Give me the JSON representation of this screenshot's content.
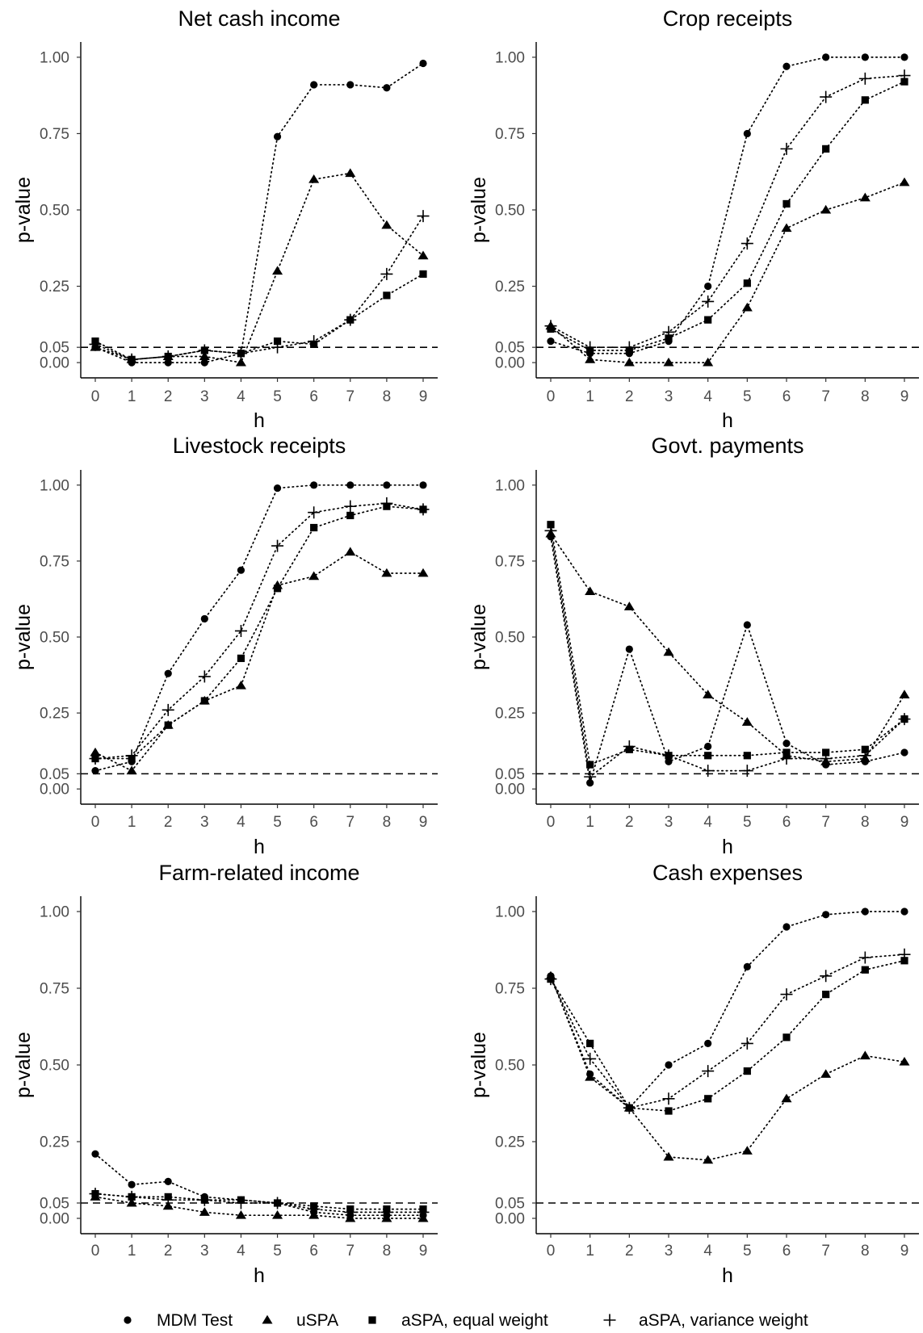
{
  "legend": {
    "items": [
      {
        "label": "MDM Test",
        "marker": "circle"
      },
      {
        "label": "uSPA",
        "marker": "triangle"
      },
      {
        "label": "aSPA, equal weight",
        "marker": "square"
      },
      {
        "label": "aSPA, variance weight",
        "marker": "plus"
      }
    ]
  },
  "chart_data": [
    {
      "type": "line",
      "title": "Net cash income",
      "xlabel": "h",
      "ylabel": "p-value",
      "x": [
        0,
        1,
        2,
        3,
        4,
        5,
        6,
        7,
        8,
        9
      ],
      "xticks": [
        "0",
        "1",
        "2",
        "3",
        "4",
        "5",
        "6",
        "7",
        "8",
        "9"
      ],
      "yticks": [
        0.0,
        0.05,
        0.25,
        0.5,
        0.75,
        1.0
      ],
      "ytick_labels": [
        "0.00",
        "0.05",
        "0.25",
        "0.50",
        "0.75",
        "1.00"
      ],
      "ylim": [
        -0.05,
        1.05
      ],
      "reference_line": 0.05,
      "series": [
        {
          "name": "MDM Test",
          "marker": "circle",
          "values": [
            0.05,
            0.0,
            0.0,
            0.0,
            0.03,
            0.74,
            0.91,
            0.91,
            0.9,
            0.98
          ]
        },
        {
          "name": "uSPA",
          "marker": "triangle",
          "values": [
            0.05,
            0.01,
            0.02,
            0.02,
            0.0,
            0.3,
            0.6,
            0.62,
            0.45,
            0.35
          ]
        },
        {
          "name": "aSPA, equal weight",
          "marker": "square",
          "values": [
            0.07,
            0.01,
            0.02,
            0.04,
            0.03,
            0.07,
            0.06,
            0.14,
            0.22,
            0.29
          ]
        },
        {
          "name": "aSPA, variance weight",
          "marker": "plus",
          "values": [
            0.06,
            0.01,
            0.02,
            0.04,
            0.03,
            0.05,
            0.07,
            0.14,
            0.29,
            0.48
          ]
        }
      ]
    },
    {
      "type": "line",
      "title": "Crop receipts",
      "xlabel": "h",
      "ylabel": "p-value",
      "x": [
        0,
        1,
        2,
        3,
        4,
        5,
        6,
        7,
        8,
        9
      ],
      "xticks": [
        "0",
        "1",
        "2",
        "3",
        "4",
        "5",
        "6",
        "7",
        "8",
        "9"
      ],
      "yticks": [
        0.0,
        0.05,
        0.25,
        0.5,
        0.75,
        1.0
      ],
      "ytick_labels": [
        "0.00",
        "0.05",
        "0.25",
        "0.50",
        "0.75",
        "1.00"
      ],
      "ylim": [
        -0.05,
        1.05
      ],
      "reference_line": 0.05,
      "series": [
        {
          "name": "MDM Test",
          "marker": "circle",
          "values": [
            0.07,
            0.03,
            0.03,
            0.07,
            0.25,
            0.75,
            0.97,
            1.0,
            1.0,
            1.0
          ]
        },
        {
          "name": "uSPA",
          "marker": "triangle",
          "values": [
            0.12,
            0.01,
            0.0,
            0.0,
            0.0,
            0.18,
            0.44,
            0.5,
            0.54,
            0.59
          ]
        },
        {
          "name": "aSPA, equal weight",
          "marker": "square",
          "values": [
            0.11,
            0.04,
            0.04,
            0.08,
            0.14,
            0.26,
            0.52,
            0.7,
            0.86,
            0.92
          ]
        },
        {
          "name": "aSPA, variance weight",
          "marker": "plus",
          "values": [
            0.12,
            0.05,
            0.05,
            0.1,
            0.2,
            0.39,
            0.7,
            0.87,
            0.93,
            0.94
          ]
        }
      ]
    },
    {
      "type": "line",
      "title": "Livestock receipts",
      "xlabel": "h",
      "ylabel": "p-value",
      "x": [
        0,
        1,
        2,
        3,
        4,
        5,
        6,
        7,
        8,
        9
      ],
      "xticks": [
        "0",
        "1",
        "2",
        "3",
        "4",
        "5",
        "6",
        "7",
        "8",
        "9"
      ],
      "yticks": [
        0.0,
        0.05,
        0.25,
        0.5,
        0.75,
        1.0
      ],
      "ytick_labels": [
        "0.00",
        "0.05",
        "0.25",
        "0.50",
        "0.75",
        "1.00"
      ],
      "ylim": [
        -0.05,
        1.05
      ],
      "reference_line": 0.05,
      "series": [
        {
          "name": "MDM Test",
          "marker": "circle",
          "values": [
            0.06,
            0.09,
            0.38,
            0.56,
            0.72,
            0.99,
            1.0,
            1.0,
            1.0,
            1.0
          ]
        },
        {
          "name": "uSPA",
          "marker": "triangle",
          "values": [
            0.12,
            0.06,
            0.21,
            0.29,
            0.34,
            0.67,
            0.7,
            0.78,
            0.71,
            0.71
          ]
        },
        {
          "name": "aSPA, equal weight",
          "marker": "square",
          "values": [
            0.1,
            0.1,
            0.21,
            0.29,
            0.43,
            0.66,
            0.86,
            0.9,
            0.93,
            0.92
          ]
        },
        {
          "name": "aSPA, variance weight",
          "marker": "plus",
          "values": [
            0.1,
            0.11,
            0.26,
            0.37,
            0.52,
            0.8,
            0.91,
            0.93,
            0.94,
            0.92
          ]
        }
      ]
    },
    {
      "type": "line",
      "title": "Govt. payments",
      "xlabel": "h",
      "ylabel": "p-value",
      "x": [
        0,
        1,
        2,
        3,
        4,
        5,
        6,
        7,
        8,
        9
      ],
      "xticks": [
        "0",
        "1",
        "2",
        "3",
        "4",
        "5",
        "6",
        "7",
        "8",
        "9"
      ],
      "yticks": [
        0.0,
        0.05,
        0.25,
        0.5,
        0.75,
        1.0
      ],
      "ytick_labels": [
        "0.00",
        "0.05",
        "0.25",
        "0.50",
        "0.75",
        "1.00"
      ],
      "ylim": [
        -0.05,
        1.05
      ],
      "reference_line": 0.05,
      "series": [
        {
          "name": "MDM Test",
          "marker": "circle",
          "values": [
            0.83,
            0.02,
            0.46,
            0.09,
            0.14,
            0.54,
            0.15,
            0.08,
            0.09,
            0.12
          ]
        },
        {
          "name": "uSPA",
          "marker": "triangle",
          "values": [
            0.84,
            0.65,
            0.6,
            0.45,
            0.31,
            0.22,
            0.11,
            0.09,
            0.1,
            0.31
          ]
        },
        {
          "name": "aSPA, equal weight",
          "marker": "square",
          "values": [
            0.87,
            0.08,
            0.13,
            0.11,
            0.11,
            0.11,
            0.12,
            0.12,
            0.13,
            0.23
          ]
        },
        {
          "name": "aSPA, variance weight",
          "marker": "plus",
          "values": [
            0.85,
            0.04,
            0.14,
            0.11,
            0.06,
            0.06,
            0.1,
            0.1,
            0.11,
            0.23
          ]
        }
      ]
    },
    {
      "type": "line",
      "title": "Farm-related income",
      "xlabel": "h",
      "ylabel": "p-value",
      "x": [
        0,
        1,
        2,
        3,
        4,
        5,
        6,
        7,
        8,
        9
      ],
      "xticks": [
        "0",
        "1",
        "2",
        "3",
        "4",
        "5",
        "6",
        "7",
        "8",
        "9"
      ],
      "yticks": [
        0.0,
        0.05,
        0.25,
        0.5,
        0.75,
        1.0
      ],
      "ytick_labels": [
        "0.00",
        "0.05",
        "0.25",
        "0.50",
        "0.75",
        "1.00"
      ],
      "ylim": [
        -0.05,
        1.05
      ],
      "reference_line": 0.05,
      "series": [
        {
          "name": "MDM Test",
          "marker": "circle",
          "values": [
            0.21,
            0.11,
            0.12,
            0.07,
            0.06,
            0.05,
            0.02,
            0.01,
            0.01,
            0.01
          ]
        },
        {
          "name": "uSPA",
          "marker": "triangle",
          "values": [
            0.07,
            0.05,
            0.04,
            0.02,
            0.01,
            0.01,
            0.01,
            0.0,
            0.0,
            0.0
          ]
        },
        {
          "name": "aSPA, equal weight",
          "marker": "square",
          "values": [
            0.08,
            0.07,
            0.07,
            0.06,
            0.06,
            0.05,
            0.04,
            0.03,
            0.03,
            0.03
          ]
        },
        {
          "name": "aSPA, variance weight",
          "marker": "plus",
          "values": [
            0.08,
            0.07,
            0.06,
            0.06,
            0.05,
            0.05,
            0.03,
            0.02,
            0.02,
            0.02
          ]
        }
      ]
    },
    {
      "type": "line",
      "title": "Cash expenses",
      "xlabel": "h",
      "ylabel": "p-value",
      "x": [
        0,
        1,
        2,
        3,
        4,
        5,
        6,
        7,
        8,
        9
      ],
      "xticks": [
        "0",
        "1",
        "2",
        "3",
        "4",
        "5",
        "6",
        "7",
        "8",
        "9"
      ],
      "yticks": [
        0.0,
        0.05,
        0.25,
        0.5,
        0.75,
        1.0
      ],
      "ytick_labels": [
        "0.00",
        "0.05",
        "0.25",
        "0.50",
        "0.75",
        "1.00"
      ],
      "ylim": [
        -0.05,
        1.05
      ],
      "reference_line": 0.05,
      "series": [
        {
          "name": "MDM Test",
          "marker": "circle",
          "values": [
            0.79,
            0.47,
            0.36,
            0.5,
            0.57,
            0.82,
            0.95,
            0.99,
            1.0,
            1.0
          ]
        },
        {
          "name": "uSPA",
          "marker": "triangle",
          "values": [
            0.79,
            0.46,
            0.36,
            0.2,
            0.19,
            0.22,
            0.39,
            0.47,
            0.53,
            0.51
          ]
        },
        {
          "name": "aSPA, equal weight",
          "marker": "square",
          "values": [
            0.78,
            0.57,
            0.36,
            0.35,
            0.39,
            0.48,
            0.59,
            0.73,
            0.81,
            0.84
          ]
        },
        {
          "name": "aSPA, variance weight",
          "marker": "plus",
          "values": [
            0.78,
            0.52,
            0.36,
            0.39,
            0.48,
            0.57,
            0.73,
            0.79,
            0.85,
            0.86
          ]
        }
      ]
    }
  ]
}
